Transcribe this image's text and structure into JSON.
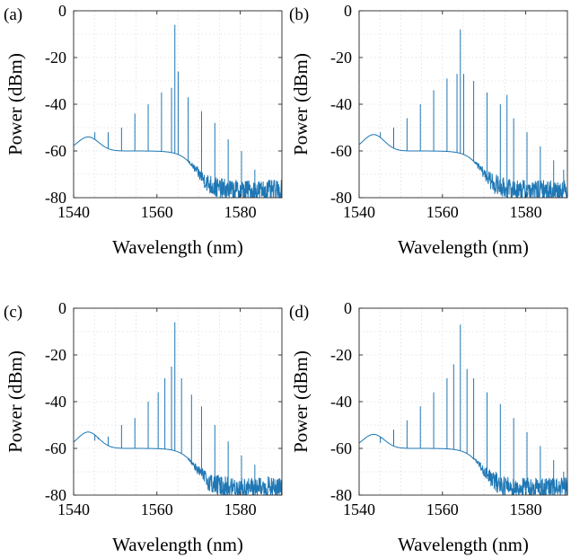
{
  "chart_data": [
    {
      "type": "line",
      "panel_label": "(a)",
      "xlabel": "Wavelength (nm)",
      "ylabel": "Power (dBm)",
      "xlim": [
        1540,
        1590
      ],
      "ylim": [
        -80,
        0
      ],
      "xticks": [
        1540,
        1560,
        1580
      ],
      "yticks": [
        0,
        -20,
        -40,
        -60,
        -80
      ],
      "grid": true,
      "baseline_dBm": {
        "at_1540": -60,
        "hump_peak_nm": 1543.5,
        "hump_peak_dBm": -54,
        "plateau_dBm": -60,
        "floor_dBm": -77
      },
      "comb_spacing_nm": 0.8,
      "pump": {
        "x": 1564.3,
        "y": -6
      },
      "comb_lines": [
        {
          "x": 1545.1,
          "y": -52
        },
        {
          "x": 1548.3,
          "y": -52
        },
        {
          "x": 1551.5,
          "y": -50
        },
        {
          "x": 1554.7,
          "y": -44
        },
        {
          "x": 1557.9,
          "y": -40
        },
        {
          "x": 1561.1,
          "y": -35
        },
        {
          "x": 1563.5,
          "y": -33
        },
        {
          "x": 1565.1,
          "y": -26
        },
        {
          "x": 1567.5,
          "y": -37
        },
        {
          "x": 1570.7,
          "y": -43
        },
        {
          "x": 1573.9,
          "y": -48
        },
        {
          "x": 1577.1,
          "y": -55
        },
        {
          "x": 1580.3,
          "y": -60
        },
        {
          "x": 1583.5,
          "y": -68
        },
        {
          "x": 1586.7,
          "y": -73
        }
      ]
    },
    {
      "type": "line",
      "panel_label": "(b)",
      "xlabel": "Wavelength (nm)",
      "ylabel": "Power (dBm)",
      "xlim": [
        1540,
        1590
      ],
      "ylim": [
        -80,
        0
      ],
      "xticks": [
        1540,
        1560,
        1580
      ],
      "yticks": [
        0,
        -20,
        -40,
        -60,
        -80
      ],
      "grid": true,
      "baseline_dBm": {
        "at_1540": -60,
        "hump_peak_nm": 1543.5,
        "hump_peak_dBm": -53,
        "plateau_dBm": -60,
        "floor_dBm": -77
      },
      "comb_spacing_nm": 0.8,
      "pump": {
        "x": 1564.3,
        "y": -8
      },
      "comb_lines": [
        {
          "x": 1545.1,
          "y": -52
        },
        {
          "x": 1548.3,
          "y": -50
        },
        {
          "x": 1551.5,
          "y": -46
        },
        {
          "x": 1554.7,
          "y": -40
        },
        {
          "x": 1557.9,
          "y": -34
        },
        {
          "x": 1561.1,
          "y": -29
        },
        {
          "x": 1563.5,
          "y": -27
        },
        {
          "x": 1565.1,
          "y": -27
        },
        {
          "x": 1567.5,
          "y": -30
        },
        {
          "x": 1570.7,
          "y": -35
        },
        {
          "x": 1573.9,
          "y": -40
        },
        {
          "x": 1575.5,
          "y": -36
        },
        {
          "x": 1577.1,
          "y": -46
        },
        {
          "x": 1580.3,
          "y": -52
        },
        {
          "x": 1583.5,
          "y": -58
        },
        {
          "x": 1586.7,
          "y": -64
        },
        {
          "x": 1589.1,
          "y": -68
        }
      ]
    },
    {
      "type": "line",
      "panel_label": "(c)",
      "xlabel": "Wavelength (nm)",
      "ylabel": "Power (dBm)",
      "xlim": [
        1540,
        1590
      ],
      "ylim": [
        -80,
        0
      ],
      "xticks": [
        1540,
        1560,
        1580
      ],
      "yticks": [
        0,
        -20,
        -40,
        -60,
        -80
      ],
      "grid": true,
      "baseline_dBm": {
        "at_1540": -60,
        "hump_peak_nm": 1543.5,
        "hump_peak_dBm": -53,
        "plateau_dBm": -60,
        "floor_dBm": -77
      },
      "comb_spacing_nm": 0.8,
      "pump": {
        "x": 1564.3,
        "y": -6
      },
      "comb_lines": [
        {
          "x": 1545.1,
          "y": -55
        },
        {
          "x": 1548.3,
          "y": -55
        },
        {
          "x": 1551.5,
          "y": -50
        },
        {
          "x": 1554.7,
          "y": -47
        },
        {
          "x": 1557.9,
          "y": -40
        },
        {
          "x": 1560.3,
          "y": -36
        },
        {
          "x": 1561.9,
          "y": -30
        },
        {
          "x": 1563.5,
          "y": -25
        },
        {
          "x": 1565.9,
          "y": -30
        },
        {
          "x": 1568.3,
          "y": -37
        },
        {
          "x": 1570.7,
          "y": -42
        },
        {
          "x": 1573.9,
          "y": -50
        },
        {
          "x": 1577.1,
          "y": -57
        },
        {
          "x": 1580.3,
          "y": -63
        },
        {
          "x": 1583.5,
          "y": -67
        },
        {
          "x": 1586.7,
          "y": -72
        }
      ]
    },
    {
      "type": "line",
      "panel_label": "(d)",
      "xlabel": "Wavelength (nm)",
      "ylabel": "Power (dBm)",
      "xlim": [
        1540,
        1590
      ],
      "ylim": [
        -80,
        0
      ],
      "xticks": [
        1540,
        1560,
        1580
      ],
      "yticks": [
        0,
        -20,
        -40,
        -60,
        -80
      ],
      "grid": true,
      "baseline_dBm": {
        "at_1540": -60,
        "hump_peak_nm": 1543.5,
        "hump_peak_dBm": -54,
        "plateau_dBm": -60,
        "floor_dBm": -77
      },
      "comb_spacing_nm": 3.2,
      "pump": {
        "x": 1564.3,
        "y": -7
      },
      "comb_lines": [
        {
          "x": 1545.1,
          "y": -56
        },
        {
          "x": 1548.3,
          "y": -52
        },
        {
          "x": 1551.5,
          "y": -48
        },
        {
          "x": 1554.7,
          "y": -42
        },
        {
          "x": 1557.9,
          "y": -36
        },
        {
          "x": 1561.1,
          "y": -30
        },
        {
          "x": 1562.7,
          "y": -24
        },
        {
          "x": 1565.9,
          "y": -26
        },
        {
          "x": 1567.5,
          "y": -30
        },
        {
          "x": 1570.7,
          "y": -36
        },
        {
          "x": 1573.9,
          "y": -41
        },
        {
          "x": 1577.1,
          "y": -47
        },
        {
          "x": 1580.3,
          "y": -53
        },
        {
          "x": 1583.5,
          "y": -59
        },
        {
          "x": 1586.7,
          "y": -65
        },
        {
          "x": 1589.1,
          "y": -70
        }
      ]
    }
  ]
}
